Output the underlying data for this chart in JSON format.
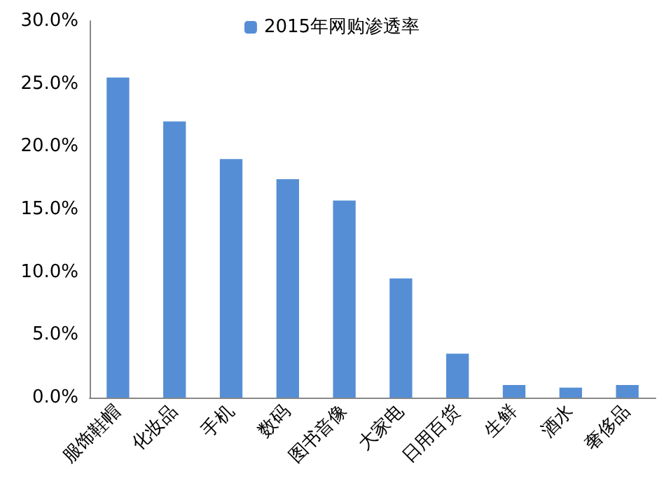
{
  "chart_data": {
    "type": "bar",
    "categories": [
      "服饰鞋帽",
      "化妆品",
      "手机",
      "数码",
      "图书音像",
      "大家电",
      "日用百货",
      "生鲜",
      "酒水",
      "奢侈品"
    ],
    "series": [
      {
        "name": "2015年网购渗透率",
        "color": "#558ed5",
        "values": [
          25.5,
          22.0,
          19.0,
          17.4,
          15.7,
          9.5,
          3.5,
          1.0,
          0.8,
          1.0
        ]
      }
    ],
    "ylim": [
      0,
      30
    ],
    "yticks": [
      {
        "value": 0,
        "label": "0.0%"
      },
      {
        "value": 5,
        "label": "5.0%"
      },
      {
        "value": 10,
        "label": "10.0%"
      },
      {
        "value": 15,
        "label": "15.0%"
      },
      {
        "value": 20,
        "label": "20.0%"
      },
      {
        "value": 25,
        "label": "25.0%"
      },
      {
        "value": 30,
        "label": "30.0%"
      }
    ],
    "grid": false,
    "legend": "top"
  }
}
